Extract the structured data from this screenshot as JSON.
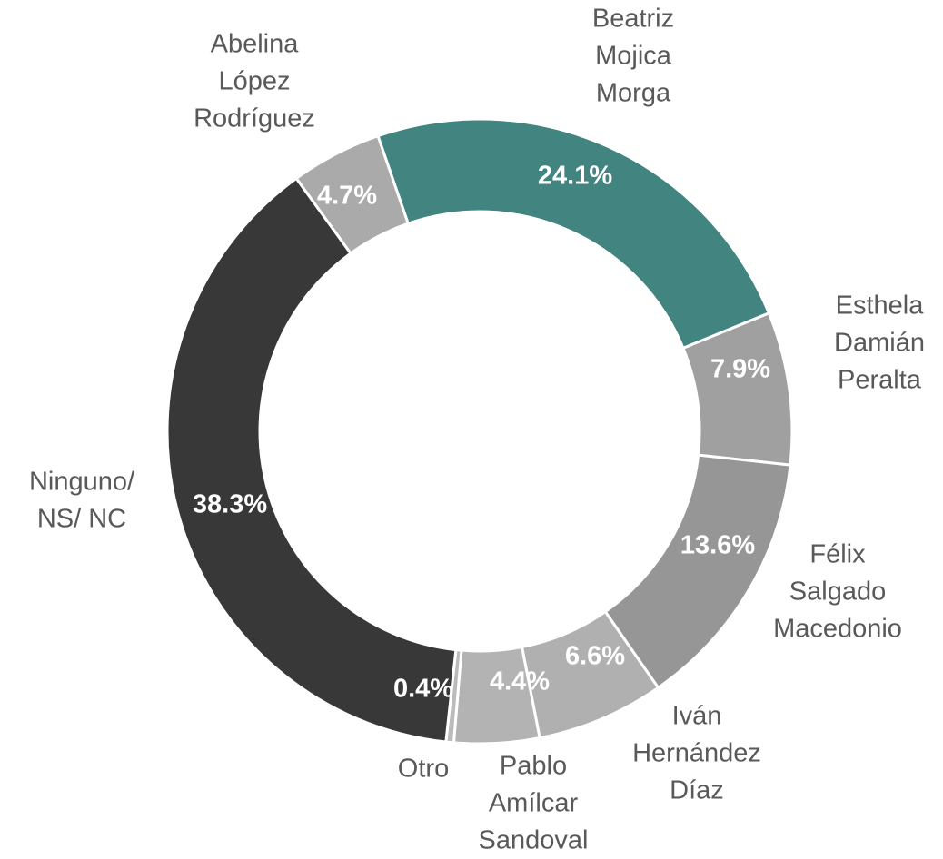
{
  "chart_data": {
    "type": "donut",
    "categories": [
      [
        "Beatriz",
        "Mojica",
        "Morga"
      ],
      [
        "Esthela",
        "Damián",
        "Peralta"
      ],
      [
        "Félix",
        "Salgado",
        "Macedonio"
      ],
      [
        "Iván",
        "Hernández",
        "Díaz"
      ],
      [
        "Pablo",
        "Amílcar",
        "Sandoval"
      ],
      [
        "Otro"
      ],
      [
        "Ninguno/",
        "NS/ NC"
      ],
      [
        "Abelina",
        "López",
        "Rodríguez"
      ]
    ],
    "values": [
      24.1,
      7.9,
      13.6,
      6.6,
      4.4,
      0.4,
      38.3,
      4.7
    ],
    "value_labels": [
      "24.1%",
      "7.9%",
      "13.6%",
      "6.6%",
      "4.4%",
      "0.4%",
      "38.3%",
      "4.7%"
    ],
    "colors": [
      "#418480",
      "#a0a0a0",
      "#969696",
      "#b0b0b0",
      "#b3b3b3",
      "#bbbbbb",
      "#383838",
      "#aaaaaa"
    ]
  }
}
